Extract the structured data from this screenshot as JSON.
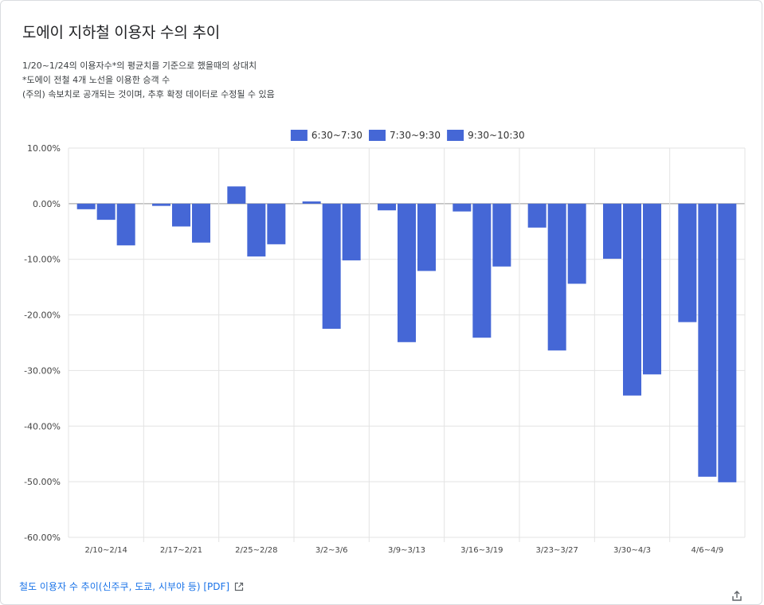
{
  "page": {
    "title": "도에이 지하철 이용자 수의 추이",
    "subtitle_lines": [
      "1/20~1/24의 이용자수*의 평균치를 기준으로 했을때의 상대치",
      "*도에이 전철 4개 노선을 이용한 승객 수",
      "(주의) 속보치로 공개되는 것이며, 추후 확정 데이터로 수정될 수 있음"
    ],
    "source_link": "철도 이용자 수 추이(신주쿠, 도쿄, 시부야 등) [PDF]",
    "source_icon": "external-link-icon",
    "share_icon": "share-icon"
  },
  "chart_data": {
    "type": "bar",
    "title": "도에이 지하철 이용자 수의 추이",
    "categories": [
      "2/10~2/14",
      "2/17~2/21",
      "2/25~2/28",
      "3/2~3/6",
      "3/9~3/13",
      "3/16~3/19",
      "3/23~3/27",
      "3/30~4/3",
      "4/6~4/9"
    ],
    "series": [
      {
        "name": "6:30~7:30",
        "color": "#4567d6",
        "values": [
          -1.0,
          -0.4,
          3.1,
          0.4,
          -1.2,
          -1.4,
          -4.3,
          -9.9,
          -21.3
        ]
      },
      {
        "name": "7:30~9:30",
        "color": "#4567d6",
        "values": [
          -2.9,
          -4.1,
          -9.5,
          -22.5,
          -24.9,
          -24.1,
          -26.4,
          -34.5,
          -49.1
        ]
      },
      {
        "name": "9:30~10:30",
        "color": "#4567d6",
        "values": [
          -7.5,
          -7.0,
          -7.3,
          -10.2,
          -12.1,
          -11.3,
          -14.4,
          -30.7,
          -50.1
        ]
      }
    ],
    "yticks": [
      "10.00%",
      "0.00%",
      "-10.00%",
      "-20.00%",
      "-30.00%",
      "-40.00%",
      "-50.00%",
      "-60.00%"
    ],
    "ylim": [
      -60,
      10
    ],
    "grid": true,
    "legend": "top-center",
    "xlabel": "",
    "ylabel": ""
  }
}
